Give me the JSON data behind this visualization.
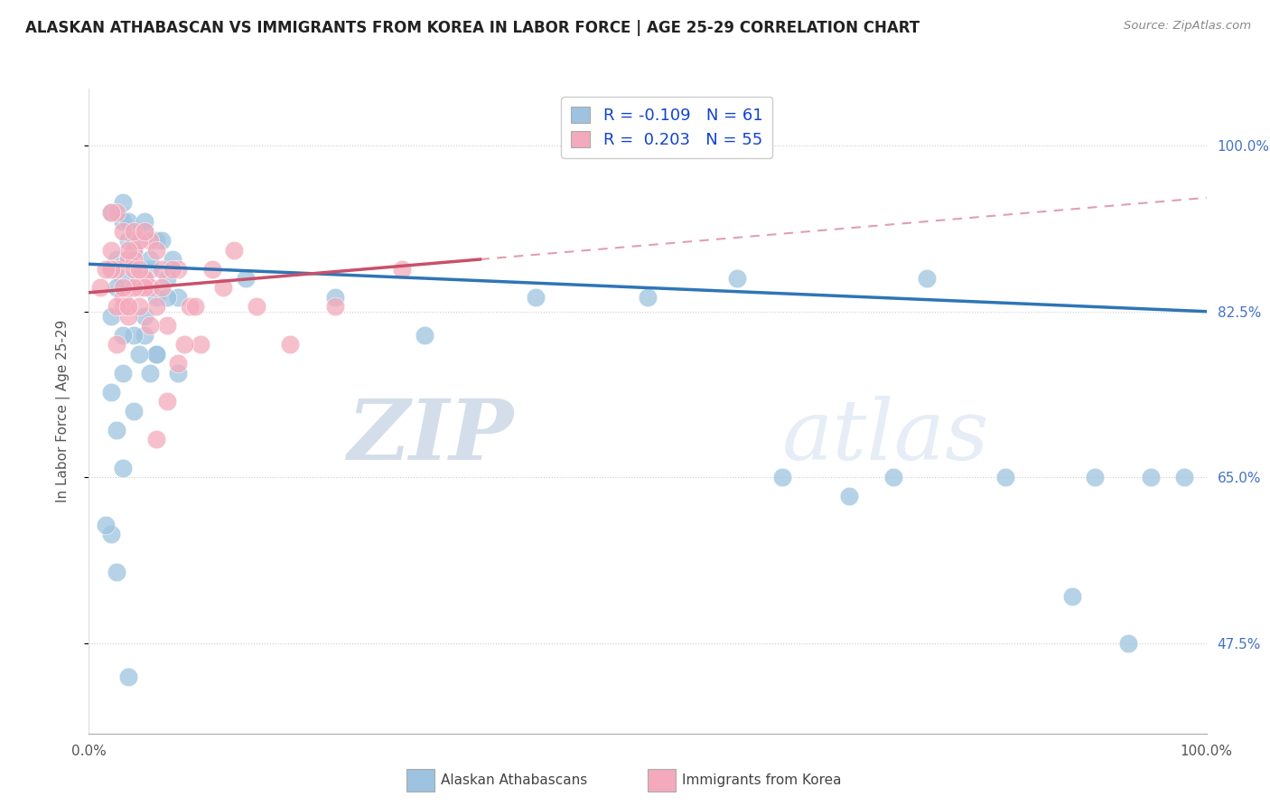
{
  "title": "ALASKAN ATHABASCAN VS IMMIGRANTS FROM KOREA IN LABOR FORCE | AGE 25-29 CORRELATION CHART",
  "source": "Source: ZipAtlas.com",
  "ylabel": "In Labor Force | Age 25-29",
  "ytick_labels": [
    "100.0%",
    "82.5%",
    "65.0%",
    "47.5%"
  ],
  "ytick_values": [
    1.0,
    0.825,
    0.65,
    0.475
  ],
  "legend_blue_r": "-0.109",
  "legend_blue_n": "61",
  "legend_pink_r": "0.203",
  "legend_pink_n": "55",
  "blue_color": "#9DC3E0",
  "pink_color": "#F4AABC",
  "blue_line_color": "#2E75B6",
  "pink_line_color": "#C9506A",
  "watermark_zip": "#C8D4E8",
  "watermark_atlas": "#D8E4F0",
  "background_color": "#FFFFFF",
  "blue_x": [
    0.02,
    0.03,
    0.035,
    0.04,
    0.045,
    0.02,
    0.025,
    0.03,
    0.035,
    0.04,
    0.05,
    0.055,
    0.06,
    0.025,
    0.03,
    0.035,
    0.04,
    0.045,
    0.05,
    0.055,
    0.06,
    0.065,
    0.07,
    0.075,
    0.08,
    0.05,
    0.03,
    0.02,
    0.04,
    0.06,
    0.02,
    0.025,
    0.03,
    0.04,
    0.05,
    0.06,
    0.07,
    0.08,
    0.14,
    0.22,
    0.3,
    0.4,
    0.5,
    0.58,
    0.62,
    0.68,
    0.72,
    0.75,
    0.82,
    0.9,
    0.95,
    0.98,
    0.88,
    0.93,
    0.025,
    0.035,
    0.015,
    0.02,
    0.03,
    0.045,
    0.055
  ],
  "blue_y": [
    0.87,
    0.92,
    0.9,
    0.89,
    0.91,
    0.93,
    0.88,
    0.86,
    0.92,
    0.89,
    0.91,
    0.87,
    0.9,
    0.85,
    0.94,
    0.88,
    0.9,
    0.86,
    0.92,
    0.88,
    0.84,
    0.9,
    0.86,
    0.88,
    0.84,
    0.8,
    0.76,
    0.59,
    0.72,
    0.78,
    0.74,
    0.7,
    0.66,
    0.8,
    0.82,
    0.78,
    0.84,
    0.76,
    0.86,
    0.84,
    0.8,
    0.84,
    0.84,
    0.86,
    0.65,
    0.63,
    0.65,
    0.86,
    0.65,
    0.65,
    0.65,
    0.65,
    0.525,
    0.475,
    0.55,
    0.44,
    0.6,
    0.82,
    0.8,
    0.78,
    0.76
  ],
  "pink_x": [
    0.02,
    0.03,
    0.04,
    0.05,
    0.025,
    0.035,
    0.045,
    0.055,
    0.03,
    0.04,
    0.05,
    0.035,
    0.045,
    0.02,
    0.025,
    0.055,
    0.06,
    0.065,
    0.04,
    0.05,
    0.06,
    0.07,
    0.08,
    0.09,
    0.1,
    0.12,
    0.15,
    0.18,
    0.22,
    0.28,
    0.04,
    0.035,
    0.03,
    0.025,
    0.02,
    0.045,
    0.055,
    0.065,
    0.075,
    0.085,
    0.095,
    0.11,
    0.13,
    0.08,
    0.07,
    0.06,
    0.05,
    0.04,
    0.03,
    0.025,
    0.02,
    0.015,
    0.01,
    0.035,
    0.045
  ],
  "pink_y": [
    0.87,
    0.91,
    0.89,
    0.86,
    0.93,
    0.88,
    0.85,
    0.9,
    0.84,
    0.88,
    0.86,
    0.82,
    0.9,
    0.93,
    0.87,
    0.85,
    0.89,
    0.87,
    0.91,
    0.85,
    0.83,
    0.81,
    0.87,
    0.83,
    0.79,
    0.85,
    0.83,
    0.79,
    0.83,
    0.87,
    0.85,
    0.89,
    0.83,
    0.79,
    0.87,
    0.83,
    0.81,
    0.85,
    0.87,
    0.79,
    0.83,
    0.87,
    0.89,
    0.77,
    0.73,
    0.69,
    0.91,
    0.87,
    0.85,
    0.83,
    0.89,
    0.87,
    0.85,
    0.83,
    0.87
  ]
}
